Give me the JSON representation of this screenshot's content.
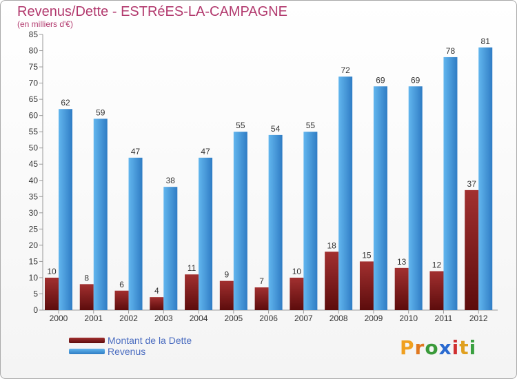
{
  "title": "Revenus/Dette - ESTRéES-LA-CAMPAGNE",
  "subtitle": "(en milliers d'€)",
  "colors": {
    "title": "#b23a6e",
    "debt_light": "#a23030",
    "debt_dark": "#5c0c0c",
    "revenue_light": "#62b6ee",
    "revenue_dark": "#2f7cc4",
    "legend_text": "#4a6cc0"
  },
  "legend": {
    "debt": "Montant de la Dette",
    "revenue": "Revenus"
  },
  "logo": {
    "letters": [
      "P",
      "r",
      "o",
      "x",
      "i",
      "t",
      "i"
    ],
    "colors": [
      "#f0a020",
      "#e07820",
      "#3a9a3a",
      "#2a6ad0",
      "#d03030",
      "#e0a020",
      "#3aa040"
    ]
  },
  "chart_data": {
    "type": "bar",
    "categories": [
      "2000",
      "2001",
      "2002",
      "2003",
      "2004",
      "2005",
      "2006",
      "2007",
      "2008",
      "2009",
      "2010",
      "2011",
      "2012"
    ],
    "series": [
      {
        "name": "Montant de la Dette",
        "values": [
          10,
          8,
          6,
          4,
          11,
          9,
          7,
          10,
          18,
          15,
          13,
          12,
          37
        ]
      },
      {
        "name": "Revenus",
        "values": [
          62,
          59,
          47,
          38,
          47,
          55,
          54,
          55,
          72,
          69,
          69,
          78,
          81
        ]
      }
    ],
    "yticks": [
      0,
      5,
      10,
      15,
      20,
      25,
      30,
      35,
      40,
      45,
      50,
      55,
      60,
      65,
      70,
      75,
      80,
      85
    ],
    "ylim": [
      0,
      85
    ],
    "title": "Revenus/Dette - ESTRéES-LA-CAMPAGNE",
    "ylabel": "(en milliers d'€)",
    "xlabel": "",
    "grid": false,
    "legend_position": "bottom-left"
  }
}
